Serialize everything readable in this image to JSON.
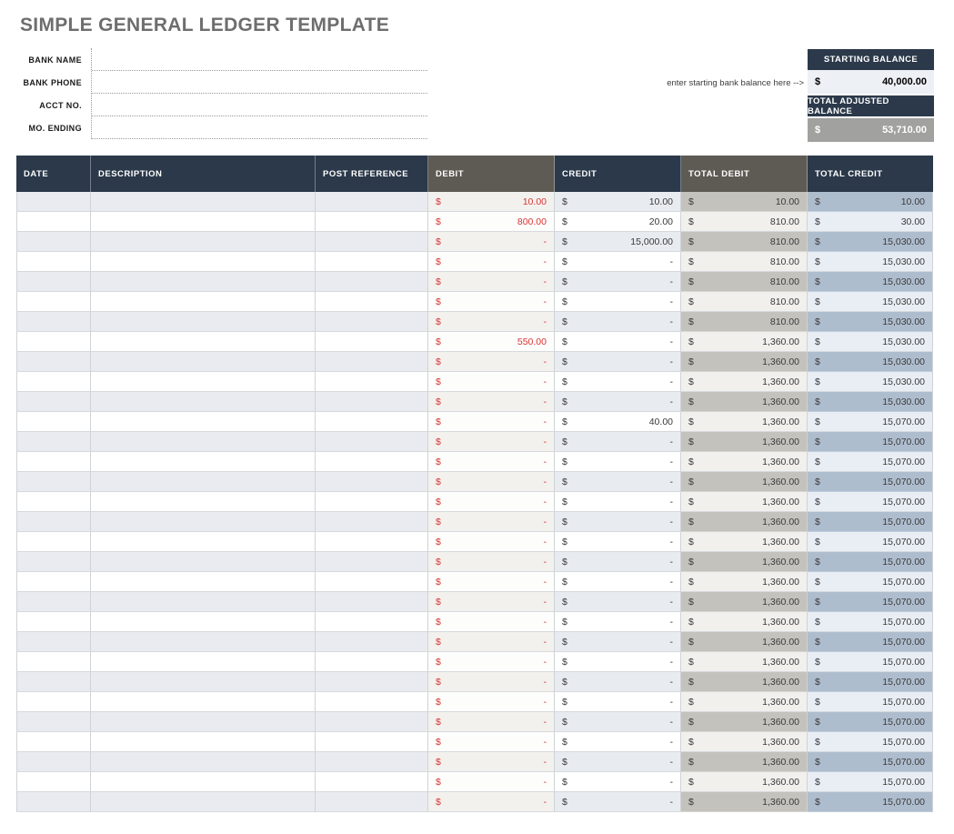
{
  "title": "SIMPLE GENERAL LEDGER TEMPLATE",
  "bank_info": {
    "fields": [
      {
        "label": "BANK NAME",
        "value": ""
      },
      {
        "label": "BANK PHONE",
        "value": ""
      },
      {
        "label": "ACCT NO.",
        "value": ""
      },
      {
        "label": "MO. ENDING",
        "value": ""
      }
    ]
  },
  "balance_panel": {
    "hint": "enter starting bank balance here -->",
    "starting": {
      "label": "STARTING BALANCE",
      "currency": "$",
      "value": "40,000.00"
    },
    "adjusted": {
      "label": "TOTAL ADJUSTED BALANCE",
      "currency": "$",
      "value": "53,710.00"
    }
  },
  "ledger": {
    "columns": [
      {
        "label": "DATE",
        "theme": "navy"
      },
      {
        "label": "DESCRIPTION",
        "theme": "navy"
      },
      {
        "label": "POST REFERENCE",
        "theme": "navy"
      },
      {
        "label": "DEBIT",
        "theme": "gray"
      },
      {
        "label": "CREDIT",
        "theme": "navy"
      },
      {
        "label": "TOTAL DEBIT",
        "theme": "gray"
      },
      {
        "label": "TOTAL CREDIT",
        "theme": "navy"
      }
    ],
    "currency": "$",
    "rows": [
      {
        "date": "",
        "description": "",
        "post_reference": "",
        "debit": "10.00",
        "credit": "10.00",
        "total_debit": "10.00",
        "total_credit": "10.00"
      },
      {
        "date": "",
        "description": "",
        "post_reference": "",
        "debit": "800.00",
        "credit": "20.00",
        "total_debit": "810.00",
        "total_credit": "30.00"
      },
      {
        "date": "",
        "description": "",
        "post_reference": "",
        "debit": "-",
        "credit": "15,000.00",
        "total_debit": "810.00",
        "total_credit": "15,030.00"
      },
      {
        "date": "",
        "description": "",
        "post_reference": "",
        "debit": "-",
        "credit": "-",
        "total_debit": "810.00",
        "total_credit": "15,030.00"
      },
      {
        "date": "",
        "description": "",
        "post_reference": "",
        "debit": "-",
        "credit": "-",
        "total_debit": "810.00",
        "total_credit": "15,030.00"
      },
      {
        "date": "",
        "description": "",
        "post_reference": "",
        "debit": "-",
        "credit": "-",
        "total_debit": "810.00",
        "total_credit": "15,030.00"
      },
      {
        "date": "",
        "description": "",
        "post_reference": "",
        "debit": "-",
        "credit": "-",
        "total_debit": "810.00",
        "total_credit": "15,030.00"
      },
      {
        "date": "",
        "description": "",
        "post_reference": "",
        "debit": "550.00",
        "credit": "-",
        "total_debit": "1,360.00",
        "total_credit": "15,030.00"
      },
      {
        "date": "",
        "description": "",
        "post_reference": "",
        "debit": "-",
        "credit": "-",
        "total_debit": "1,360.00",
        "total_credit": "15,030.00"
      },
      {
        "date": "",
        "description": "",
        "post_reference": "",
        "debit": "-",
        "credit": "-",
        "total_debit": "1,360.00",
        "total_credit": "15,030.00"
      },
      {
        "date": "",
        "description": "",
        "post_reference": "",
        "debit": "-",
        "credit": "-",
        "total_debit": "1,360.00",
        "total_credit": "15,030.00"
      },
      {
        "date": "",
        "description": "",
        "post_reference": "",
        "debit": "-",
        "credit": "40.00",
        "total_debit": "1,360.00",
        "total_credit": "15,070.00"
      },
      {
        "date": "",
        "description": "",
        "post_reference": "",
        "debit": "-",
        "credit": "-",
        "total_debit": "1,360.00",
        "total_credit": "15,070.00"
      },
      {
        "date": "",
        "description": "",
        "post_reference": "",
        "debit": "-",
        "credit": "-",
        "total_debit": "1,360.00",
        "total_credit": "15,070.00"
      },
      {
        "date": "",
        "description": "",
        "post_reference": "",
        "debit": "-",
        "credit": "-",
        "total_debit": "1,360.00",
        "total_credit": "15,070.00"
      },
      {
        "date": "",
        "description": "",
        "post_reference": "",
        "debit": "-",
        "credit": "-",
        "total_debit": "1,360.00",
        "total_credit": "15,070.00"
      },
      {
        "date": "",
        "description": "",
        "post_reference": "",
        "debit": "-",
        "credit": "-",
        "total_debit": "1,360.00",
        "total_credit": "15,070.00"
      },
      {
        "date": "",
        "description": "",
        "post_reference": "",
        "debit": "-",
        "credit": "-",
        "total_debit": "1,360.00",
        "total_credit": "15,070.00"
      },
      {
        "date": "",
        "description": "",
        "post_reference": "",
        "debit": "-",
        "credit": "-",
        "total_debit": "1,360.00",
        "total_credit": "15,070.00"
      },
      {
        "date": "",
        "description": "",
        "post_reference": "",
        "debit": "-",
        "credit": "-",
        "total_debit": "1,360.00",
        "total_credit": "15,070.00"
      },
      {
        "date": "",
        "description": "",
        "post_reference": "",
        "debit": "-",
        "credit": "-",
        "total_debit": "1,360.00",
        "total_credit": "15,070.00"
      },
      {
        "date": "",
        "description": "",
        "post_reference": "",
        "debit": "-",
        "credit": "-",
        "total_debit": "1,360.00",
        "total_credit": "15,070.00"
      },
      {
        "date": "",
        "description": "",
        "post_reference": "",
        "debit": "-",
        "credit": "-",
        "total_debit": "1,360.00",
        "total_credit": "15,070.00"
      },
      {
        "date": "",
        "description": "",
        "post_reference": "",
        "debit": "-",
        "credit": "-",
        "total_debit": "1,360.00",
        "total_credit": "15,070.00"
      },
      {
        "date": "",
        "description": "",
        "post_reference": "",
        "debit": "-",
        "credit": "-",
        "total_debit": "1,360.00",
        "total_credit": "15,070.00"
      },
      {
        "date": "",
        "description": "",
        "post_reference": "",
        "debit": "-",
        "credit": "-",
        "total_debit": "1,360.00",
        "total_credit": "15,070.00"
      },
      {
        "date": "",
        "description": "",
        "post_reference": "",
        "debit": "-",
        "credit": "-",
        "total_debit": "1,360.00",
        "total_credit": "15,070.00"
      },
      {
        "date": "",
        "description": "",
        "post_reference": "",
        "debit": "-",
        "credit": "-",
        "total_debit": "1,360.00",
        "total_credit": "15,070.00"
      },
      {
        "date": "",
        "description": "",
        "post_reference": "",
        "debit": "-",
        "credit": "-",
        "total_debit": "1,360.00",
        "total_credit": "15,070.00"
      },
      {
        "date": "",
        "description": "",
        "post_reference": "",
        "debit": "-",
        "credit": "-",
        "total_debit": "1,360.00",
        "total_credit": "15,070.00"
      },
      {
        "date": "",
        "description": "",
        "post_reference": "",
        "debit": "-",
        "credit": "-",
        "total_debit": "1,360.00",
        "total_credit": "15,070.00"
      }
    ]
  },
  "colors": {
    "header_navy": "#2b394a",
    "header_gray": "#5e5b55",
    "debit_red": "#d63535",
    "title_gray": "#6e6e6e",
    "adjusted_value_bg": "#a1a19f",
    "starting_value_bg": "#edf0f5",
    "shaded_row": "#e9ebf0",
    "total_debit_shaded": "#c4c2bd",
    "total_credit_shaded": "#aebdce"
  }
}
